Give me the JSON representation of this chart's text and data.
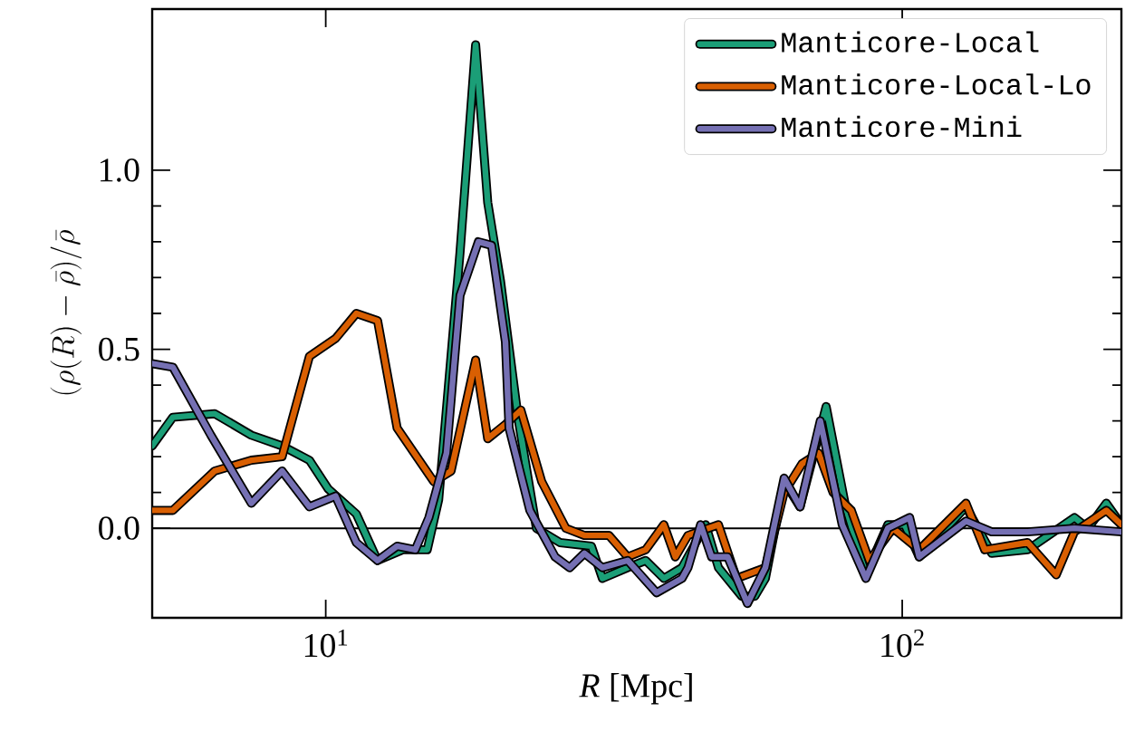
{
  "chart_data": {
    "type": "line",
    "xlabel": "*R* [Mpc]",
    "ylabel": "(\\rho(R)-\\bar{\\rho})/\\bar{\\rho}",
    "log": "x",
    "xlim": [
      5,
      240
    ],
    "ylim": [
      -0.25,
      1.45
    ],
    "xticks": [
      {
        "value": 10,
        "label": "10$^{1}$"
      },
      {
        "value": 100,
        "label": "10$^{2}$"
      }
    ],
    "yticks": [
      {
        "value": 0,
        "label": "0.0"
      },
      {
        "value": 0.5,
        "label": "0.5"
      },
      {
        "value": 1,
        "label": "1.0"
      }
    ],
    "legend": "top right",
    "line_style": "solid",
    "marker": "none",
    "ref_lines": [
      {
        "axis": "y",
        "value": 0,
        "color": "#000000"
      }
    ],
    "series": [
      {
        "name": "Manticore-Local",
        "color": "#1b9e77",
        "x": [
          5,
          5.43,
          6.42,
          7.43,
          8.4,
          9.37,
          10.1,
          11.3,
          12.3,
          13.6,
          15.0,
          15.7,
          17.1,
          18.2,
          19.1,
          20.1,
          21.6,
          23.2,
          25.5,
          28.9,
          30.2,
          33.4,
          35.9,
          38.6,
          41.5,
          45.6,
          48.0,
          52.7,
          55.5,
          57.9,
          62.4,
          66.5,
          73.8,
          79.8,
          86.5,
          94.4,
          101,
          107,
          129,
          143,
          165,
          199,
          210,
          226,
          240
        ],
        "values": [
          0.23,
          0.31,
          0.32,
          0.26,
          0.23,
          0.19,
          0.11,
          0.04,
          -0.09,
          -0.06,
          -0.06,
          0.08,
          0.77,
          1.35,
          0.91,
          0.69,
          0.3,
          0.0,
          -0.04,
          -0.05,
          -0.14,
          -0.11,
          -0.09,
          -0.14,
          -0.11,
          0.01,
          -0.11,
          -0.19,
          -0.19,
          -0.14,
          0.13,
          0.06,
          0.34,
          0.06,
          -0.13,
          0.01,
          0.01,
          -0.08,
          0.06,
          -0.07,
          -0.06,
          0.03,
          0.0,
          0.07,
          0.01
        ]
      },
      {
        "name": "Manticore-Local-Lo",
        "color": "#d95f02",
        "x": [
          5,
          5.43,
          6.42,
          7.43,
          8.4,
          9.37,
          10.4,
          11.3,
          12.3,
          13.3,
          15.4,
          16.5,
          18.2,
          19.1,
          20.5,
          21.8,
          23.7,
          26.1,
          28.1,
          31.0,
          33.4,
          35.9,
          38.6,
          40.4,
          42.5,
          48.0,
          51.6,
          57.9,
          62.4,
          67.0,
          71.6,
          75.9,
          81.6,
          87.7,
          96.4,
          107,
          129,
          139,
          165,
          185,
          199,
          226,
          240
        ],
        "values": [
          0.05,
          0.05,
          0.16,
          0.19,
          0.2,
          0.48,
          0.53,
          0.6,
          0.58,
          0.28,
          0.13,
          0.16,
          0.47,
          0.25,
          0.29,
          0.33,
          0.13,
          0.0,
          -0.02,
          -0.02,
          -0.08,
          -0.06,
          0.01,
          -0.08,
          -0.02,
          0.01,
          -0.14,
          -0.11,
          0.1,
          0.18,
          0.21,
          0.1,
          0.05,
          -0.09,
          0.0,
          -0.06,
          0.07,
          -0.06,
          -0.04,
          -0.13,
          -0.01,
          0.05,
          0.01
        ]
      },
      {
        "name": "Manticore-Mini",
        "color": "#7570b3",
        "x": [
          5,
          5.43,
          6.32,
          7.43,
          8.4,
          9.37,
          10.4,
          11.3,
          12.3,
          13.3,
          14.3,
          15.1,
          16.2,
          17.1,
          18.4,
          19.4,
          20.5,
          20.8,
          22.6,
          25.0,
          26.5,
          28.1,
          30.2,
          33.4,
          37.5,
          41.5,
          42.5,
          44.7,
          46.7,
          49.8,
          53.9,
          57.9,
          62.4,
          66.5,
          72.1,
          78.7,
          86.5,
          94.4,
          103,
          107,
          129,
          143,
          165,
          199,
          240
        ],
        "values": [
          0.46,
          0.45,
          0.26,
          0.07,
          0.16,
          0.06,
          0.09,
          -0.04,
          -0.09,
          -0.05,
          -0.06,
          0.03,
          0.21,
          0.65,
          0.8,
          0.79,
          0.52,
          0.28,
          0.05,
          -0.08,
          -0.11,
          -0.07,
          -0.11,
          -0.09,
          -0.18,
          -0.14,
          -0.11,
          0.01,
          -0.08,
          -0.08,
          -0.21,
          -0.11,
          0.14,
          0.06,
          0.3,
          0.01,
          -0.14,
          0.0,
          0.03,
          -0.08,
          0.02,
          -0.01,
          -0.01,
          0.0,
          -0.01
        ]
      }
    ]
  }
}
